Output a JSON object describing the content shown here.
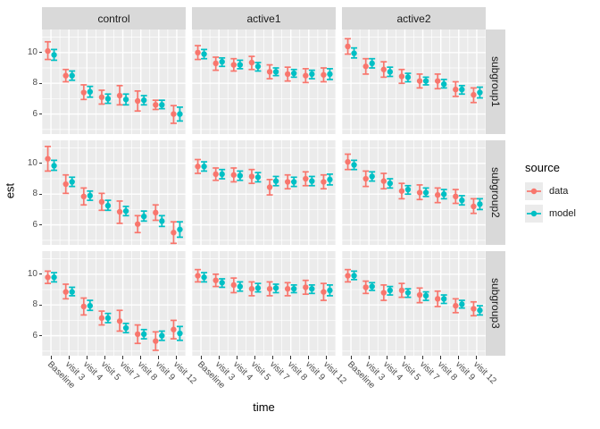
{
  "y_axis": {
    "title": "est",
    "ticks": [
      "10",
      "8",
      "6"
    ]
  },
  "x_axis": {
    "title": "time"
  },
  "legend": {
    "title": "source",
    "items": [
      {
        "label": "data",
        "color": "#F8766D"
      },
      {
        "label": "model",
        "color": "#00BFC4"
      }
    ]
  },
  "colors": {
    "panel_background": "#ebebeb",
    "strip_background": "#d9d9d9",
    "grid": "#ffffff",
    "data_series": "#F8766D",
    "model_series": "#00BFC4",
    "axis_text": "#4d4d4d",
    "tick_mark": "#333333"
  },
  "chart_data": {
    "type": "pointrange",
    "title": "",
    "xlabel": "time",
    "ylabel": "est",
    "ylim": [
      4.7,
      11.5
    ],
    "yticks": [
      10,
      8,
      6
    ],
    "grid": true,
    "legend_position": "right",
    "x_categories": [
      "Baseline",
      "visit 3",
      "visit 4",
      "visit 5",
      "visit 7",
      "visit 8",
      "visit 9",
      "visit 12"
    ],
    "facet_cols": [
      "control",
      "active1",
      "active2"
    ],
    "facet_rows": [
      "subgroup1",
      "subgroup2",
      "subgroup3"
    ],
    "series_colors": {
      "data": "#F8766D",
      "model": "#00BFC4"
    },
    "panels": [
      {
        "col": "control",
        "row": "subgroup1",
        "data": {
          "est": [
            10.1,
            8.5,
            7.4,
            7.1,
            7.2,
            6.85,
            6.6,
            6.0
          ],
          "lo": [
            9.55,
            8.1,
            6.95,
            6.65,
            6.6,
            6.2,
            6.3,
            5.4
          ],
          "hi": [
            10.7,
            8.9,
            7.9,
            7.55,
            7.85,
            7.5,
            6.9,
            6.55
          ]
        },
        "model": {
          "est": [
            9.85,
            8.5,
            7.45,
            7.0,
            6.95,
            6.9,
            6.6,
            6.0
          ],
          "lo": [
            9.5,
            8.2,
            7.1,
            6.7,
            6.6,
            6.6,
            6.35,
            5.55
          ],
          "hi": [
            10.2,
            8.8,
            7.8,
            7.3,
            7.3,
            7.2,
            6.9,
            6.45
          ]
        }
      },
      {
        "col": "active1",
        "row": "subgroup1",
        "data": {
          "est": [
            10.0,
            9.3,
            9.2,
            9.35,
            8.75,
            8.6,
            8.5,
            8.55
          ],
          "lo": [
            9.55,
            8.85,
            8.8,
            8.9,
            8.3,
            8.15,
            8.05,
            8.1
          ],
          "hi": [
            10.45,
            9.7,
            9.6,
            9.75,
            9.2,
            9.05,
            8.95,
            9.0
          ]
        },
        "model": {
          "est": [
            9.9,
            9.4,
            9.2,
            9.1,
            8.75,
            8.65,
            8.6,
            8.6
          ],
          "lo": [
            9.6,
            9.1,
            8.95,
            8.8,
            8.5,
            8.4,
            8.3,
            8.25
          ],
          "hi": [
            10.2,
            9.65,
            9.5,
            9.35,
            9.0,
            8.9,
            8.85,
            8.95
          ]
        }
      },
      {
        "col": "active2",
        "row": "subgroup1",
        "data": {
          "est": [
            10.4,
            9.1,
            8.9,
            8.45,
            8.15,
            8.15,
            7.6,
            7.25
          ],
          "lo": [
            9.9,
            8.6,
            8.4,
            8.0,
            7.7,
            7.65,
            7.15,
            6.75
          ],
          "hi": [
            10.9,
            9.6,
            9.4,
            8.9,
            8.6,
            8.6,
            8.1,
            7.7
          ]
        },
        "model": {
          "est": [
            9.95,
            9.3,
            8.75,
            8.4,
            8.15,
            7.95,
            7.6,
            7.4
          ],
          "lo": [
            9.65,
            9.0,
            8.45,
            8.1,
            7.9,
            7.7,
            7.3,
            7.05
          ],
          "hi": [
            10.3,
            9.6,
            9.05,
            8.65,
            8.4,
            8.25,
            7.85,
            7.75
          ]
        }
      },
      {
        "col": "control",
        "row": "subgroup2",
        "data": {
          "est": [
            10.3,
            8.65,
            7.85,
            7.5,
            6.85,
            6.05,
            6.8,
            5.5
          ],
          "lo": [
            9.5,
            8.05,
            7.3,
            6.95,
            6.1,
            5.5,
            6.3,
            4.8
          ],
          "hi": [
            11.1,
            9.25,
            8.4,
            8.05,
            7.55,
            6.6,
            7.3,
            6.2
          ]
        },
        "model": {
          "est": [
            9.85,
            8.8,
            7.9,
            7.25,
            6.9,
            6.55,
            6.25,
            5.7
          ],
          "lo": [
            9.55,
            8.5,
            7.6,
            6.95,
            6.6,
            6.25,
            5.9,
            5.2
          ],
          "hi": [
            10.2,
            9.1,
            8.2,
            7.6,
            7.2,
            6.9,
            6.6,
            6.2
          ]
        }
      },
      {
        "col": "active1",
        "row": "subgroup2",
        "data": {
          "est": [
            9.8,
            9.3,
            9.25,
            9.15,
            8.45,
            8.8,
            9.0,
            8.8
          ],
          "lo": [
            9.35,
            8.9,
            8.8,
            8.7,
            7.95,
            8.35,
            8.55,
            8.35
          ],
          "hi": [
            10.25,
            9.7,
            9.7,
            9.6,
            8.95,
            9.25,
            9.45,
            9.25
          ]
        },
        "model": {
          "est": [
            9.8,
            9.3,
            9.2,
            9.1,
            8.85,
            8.8,
            8.85,
            8.95
          ],
          "lo": [
            9.5,
            9.0,
            8.9,
            8.8,
            8.55,
            8.5,
            8.55,
            8.6
          ],
          "hi": [
            10.1,
            9.6,
            9.5,
            9.4,
            9.15,
            9.1,
            9.15,
            9.3
          ]
        }
      },
      {
        "col": "active2",
        "row": "subgroup2",
        "data": {
          "est": [
            10.1,
            9.0,
            8.85,
            8.2,
            8.1,
            7.95,
            7.85,
            7.2
          ],
          "lo": [
            9.6,
            8.5,
            8.35,
            7.7,
            7.65,
            7.45,
            7.4,
            6.75
          ],
          "hi": [
            10.6,
            9.5,
            9.35,
            8.7,
            8.6,
            8.4,
            8.3,
            7.7
          ]
        },
        "model": {
          "est": [
            9.9,
            9.15,
            8.7,
            8.3,
            8.1,
            8.0,
            7.6,
            7.35
          ],
          "lo": [
            9.6,
            8.85,
            8.4,
            8.0,
            7.85,
            7.7,
            7.3,
            7.0
          ],
          "hi": [
            10.2,
            9.45,
            9.0,
            8.55,
            8.4,
            8.3,
            7.9,
            7.7
          ]
        }
      },
      {
        "col": "control",
        "row": "subgroup3",
        "data": {
          "est": [
            9.8,
            8.85,
            7.9,
            7.15,
            6.95,
            6.1,
            5.65,
            6.4
          ],
          "lo": [
            9.4,
            8.4,
            7.35,
            6.7,
            6.3,
            5.5,
            5.05,
            5.8
          ],
          "hi": [
            10.2,
            9.35,
            8.45,
            7.6,
            7.65,
            6.7,
            6.25,
            7.0
          ]
        },
        "model": {
          "est": [
            9.8,
            8.85,
            7.95,
            7.15,
            6.5,
            6.1,
            6.0,
            6.15
          ],
          "lo": [
            9.5,
            8.6,
            7.65,
            6.85,
            6.2,
            5.8,
            5.7,
            5.7
          ],
          "hi": [
            10.1,
            9.15,
            8.3,
            7.45,
            6.8,
            6.4,
            6.3,
            6.6
          ]
        }
      },
      {
        "col": "active1",
        "row": "subgroup3",
        "data": {
          "est": [
            9.9,
            9.6,
            9.3,
            9.05,
            9.05,
            9.05,
            9.15,
            8.85
          ],
          "lo": [
            9.5,
            9.2,
            8.8,
            8.6,
            8.6,
            8.6,
            8.7,
            8.3
          ],
          "hi": [
            10.3,
            10.0,
            9.75,
            9.5,
            9.5,
            9.45,
            9.6,
            9.4
          ]
        },
        "model": {
          "est": [
            9.8,
            9.45,
            9.2,
            9.1,
            9.1,
            9.05,
            9.05,
            8.95
          ],
          "lo": [
            9.5,
            9.15,
            8.9,
            8.85,
            8.8,
            8.8,
            8.75,
            8.6
          ],
          "hi": [
            10.1,
            9.7,
            9.5,
            9.4,
            9.35,
            9.3,
            9.3,
            9.3
          ]
        }
      },
      {
        "col": "active2",
        "row": "subgroup3",
        "data": {
          "est": [
            9.9,
            9.15,
            8.8,
            8.95,
            8.65,
            8.4,
            7.95,
            7.75
          ],
          "lo": [
            9.5,
            8.75,
            8.3,
            8.5,
            8.15,
            7.9,
            7.5,
            7.3
          ],
          "hi": [
            10.3,
            9.55,
            9.3,
            9.4,
            9.1,
            8.9,
            8.4,
            8.2
          ]
        },
        "model": {
          "est": [
            9.9,
            9.2,
            8.95,
            8.8,
            8.6,
            8.4,
            8.05,
            7.65
          ],
          "lo": [
            9.65,
            8.95,
            8.65,
            8.5,
            8.3,
            8.1,
            7.8,
            7.35
          ],
          "hi": [
            10.2,
            9.45,
            9.2,
            9.05,
            8.85,
            8.65,
            8.3,
            7.95
          ]
        }
      }
    ]
  }
}
